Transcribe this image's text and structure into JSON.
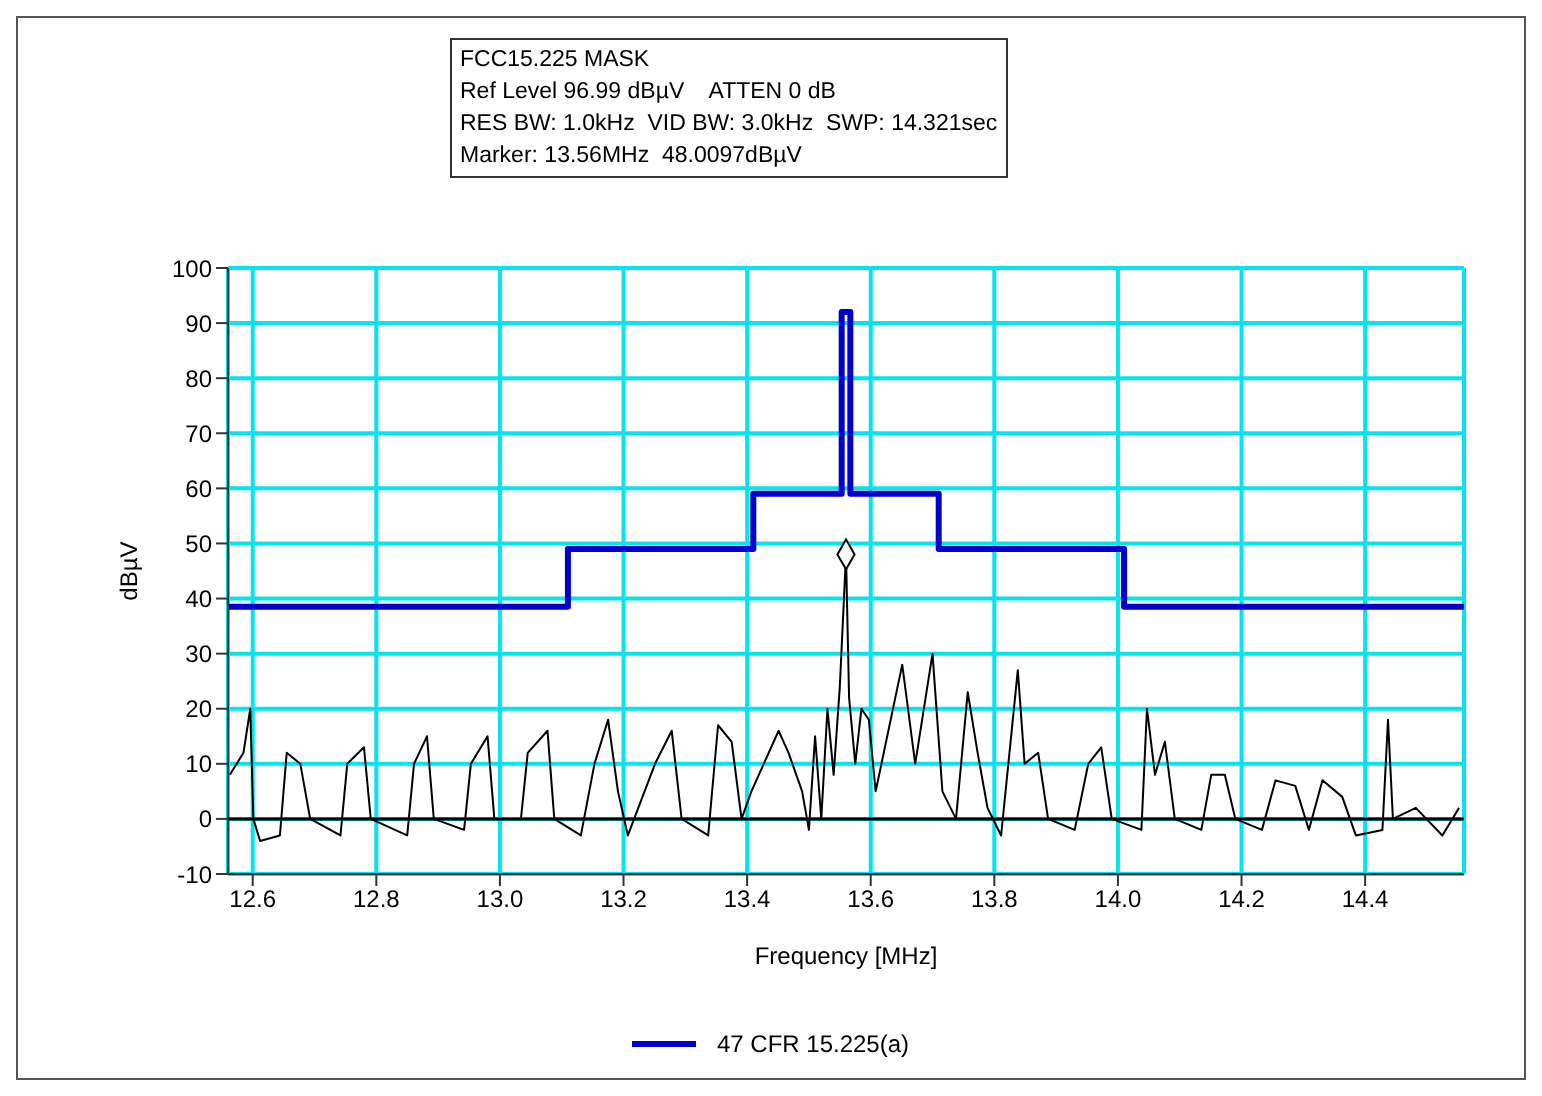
{
  "chart_data": {
    "type": "line",
    "title": "FCC15.225 MASK",
    "annotations": [
      "Ref Level 96.99 dBµV    ATTEN 0 dB",
      "RES BW: 1.0kHz  VID BW: 3.0kHz  SWP: 14.321sec",
      "Marker: 13.56MHz  48.0097dBµV"
    ],
    "xlabel": "Frequency [MHz]",
    "ylabel": "dBµV",
    "xlim": [
      12.56,
      14.56
    ],
    "xticks": [
      12.6,
      12.8,
      {
        "value": 13,
        "label": "13.0"
      },
      13.2,
      13.4,
      13.6,
      13.8,
      {
        "value": 14,
        "label": "14.0"
      },
      14.2,
      14.4
    ],
    "ylim": [
      -10,
      100
    ],
    "yticks": [
      -10,
      0,
      10,
      20,
      30,
      40,
      50,
      60,
      70,
      80,
      90,
      100
    ],
    "grid": true,
    "legend": "bottom",
    "marker": "none",
    "line_style": "solid",
    "ref_lines": [
      {
        "axis": "y",
        "value": 0,
        "color": "#000000"
      }
    ],
    "series": [
      {
        "name": "47 CFR 15.225(a)",
        "type": "step",
        "color": "#0000cc",
        "x": [
          12.56,
          13.11,
          13.41,
          13.553,
          13.567,
          13.71,
          14.01,
          14.56
        ],
        "values": [
          38.5,
          49,
          59,
          92,
          59,
          49,
          38.5,
          38.5
        ]
      },
      {
        "color": "#000000",
        "x": [
          12.563,
          12.585,
          12.596,
          12.601,
          12.612,
          12.644,
          12.655,
          12.677,
          12.693,
          12.742,
          12.753,
          12.78,
          12.791,
          12.85,
          12.861,
          12.882,
          12.893,
          12.942,
          12.953,
          12.98,
          12.991,
          13.034,
          13.045,
          13.077,
          13.088,
          13.131,
          13.153,
          13.175,
          13.191,
          13.207,
          13.251,
          13.278,
          13.294,
          13.337,
          13.353,
          13.375,
          13.391,
          13.407,
          13.451,
          13.467,
          13.489,
          13.5,
          13.51,
          13.52,
          13.53,
          13.54,
          13.55,
          13.56,
          13.565,
          13.575,
          13.585,
          13.597,
          13.608,
          13.651,
          13.672,
          13.7,
          13.716,
          13.738,
          13.757,
          13.773,
          13.789,
          13.811,
          13.838,
          13.849,
          13.871,
          13.887,
          13.93,
          13.952,
          13.973,
          13.99,
          14.038,
          14.047,
          14.06,
          14.076,
          14.092,
          14.135,
          14.151,
          14.173,
          14.19,
          14.233,
          14.255,
          14.287,
          14.309,
          14.331,
          14.363,
          14.385,
          14.428,
          14.437,
          14.445,
          14.482,
          14.525,
          14.552
        ],
        "values": [
          8,
          12,
          20,
          0,
          -4,
          -3,
          12,
          10,
          0,
          -3,
          10,
          13,
          0,
          -3,
          10,
          15,
          0,
          -2,
          10,
          15,
          0,
          0,
          12,
          16,
          0,
          -3,
          10,
          18,
          5,
          -3,
          10,
          16,
          0,
          -3,
          17,
          14,
          0,
          5,
          16,
          12,
          5,
          -2,
          15,
          0,
          20,
          8,
          24,
          48,
          22,
          10,
          20,
          18,
          5,
          28,
          10,
          30,
          5,
          0,
          23,
          12,
          2,
          -3,
          27,
          10,
          12,
          0,
          -2,
          10,
          13,
          0,
          -2,
          20,
          8,
          14,
          0,
          -2,
          8,
          8,
          0,
          -2,
          7,
          6,
          -2,
          7,
          4,
          -3,
          -2,
          18,
          0,
          2,
          -3,
          2
        ]
      },
      {
        "type": "scatter",
        "marker": "diamond",
        "color": "#000000",
        "x": [
          13.56
        ],
        "values": [
          48
        ]
      }
    ]
  }
}
